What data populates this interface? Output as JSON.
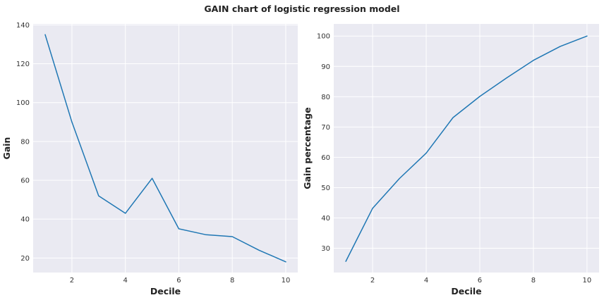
{
  "figure": {
    "title": "GAIN chart of logistic regression model"
  },
  "chart_data": [
    {
      "type": "line",
      "title": "",
      "xlabel": "Decile",
      "ylabel": "Gain",
      "x": [
        1,
        2,
        3,
        4,
        5,
        6,
        7,
        8,
        9,
        10
      ],
      "series": [
        {
          "values": [
            135,
            90,
            52,
            43,
            61,
            35,
            32,
            31,
            24,
            18
          ],
          "color": "#1f77b4"
        }
      ],
      "xlim": [
        0.55,
        10.45
      ],
      "ylim": [
        12.5,
        140.5
      ],
      "xticks": [
        2,
        4,
        6,
        8,
        10
      ],
      "yticks": [
        20,
        40,
        60,
        80,
        100,
        120,
        140
      ],
      "grid": true
    },
    {
      "type": "line",
      "title": "",
      "xlabel": "Decile",
      "ylabel": "Gain percentage",
      "x": [
        1,
        2,
        3,
        4,
        5,
        6,
        7,
        8,
        9,
        10
      ],
      "series": [
        {
          "values": [
            25.7,
            43.2,
            53.0,
            61.4,
            73.1,
            80.1,
            86.2,
            92.0,
            96.6,
            100.0
          ],
          "color": "#1f77b4"
        }
      ],
      "xlim": [
        0.55,
        10.45
      ],
      "ylim": [
        22.0,
        104.0
      ],
      "xticks": [
        2,
        4,
        6,
        8,
        10
      ],
      "yticks": [
        30,
        40,
        50,
        60,
        70,
        80,
        90,
        100
      ],
      "grid": true
    }
  ],
  "style": {
    "plot_background": "#eaeaf2",
    "grid_color": "#ffffff",
    "line_color": "#1f77b4"
  }
}
